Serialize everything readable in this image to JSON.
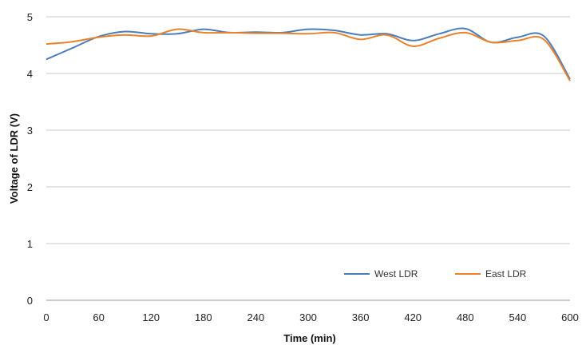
{
  "chart_data": {
    "type": "line",
    "title": "",
    "xlabel": "Time (min)",
    "ylabel": "Voltage of LDR (V)",
    "xlim": [
      0,
      600
    ],
    "ylim": [
      0,
      5
    ],
    "xticks": [
      "0",
      "60",
      "120",
      "180",
      "240",
      "300",
      "360",
      "420",
      "480",
      "540",
      "600"
    ],
    "yticks": [
      "0",
      "1",
      "2",
      "3",
      "4",
      "5"
    ],
    "grid": "horizontal",
    "legend_position": "bottom-right",
    "series": [
      {
        "name": "West LDR",
        "color": "#4a7ebb",
        "x": [
          0,
          30,
          60,
          90,
          120,
          150,
          180,
          210,
          240,
          270,
          300,
          330,
          360,
          390,
          420,
          450,
          480,
          510,
          540,
          570,
          600
        ],
        "y": [
          4.25,
          4.45,
          4.65,
          4.74,
          4.7,
          4.7,
          4.78,
          4.72,
          4.73,
          4.72,
          4.78,
          4.76,
          4.68,
          4.7,
          4.58,
          4.7,
          4.79,
          4.55,
          4.64,
          4.66,
          3.9
        ]
      },
      {
        "name": "East LDR",
        "color": "#e8822c",
        "x": [
          0,
          30,
          60,
          90,
          120,
          150,
          180,
          210,
          240,
          270,
          300,
          330,
          360,
          390,
          420,
          450,
          480,
          510,
          540,
          570,
          600
        ],
        "y": [
          4.52,
          4.56,
          4.64,
          4.68,
          4.66,
          4.78,
          4.72,
          4.72,
          4.71,
          4.71,
          4.7,
          4.72,
          4.6,
          4.68,
          4.48,
          4.62,
          4.72,
          4.55,
          4.58,
          4.6,
          3.87
        ]
      }
    ]
  }
}
